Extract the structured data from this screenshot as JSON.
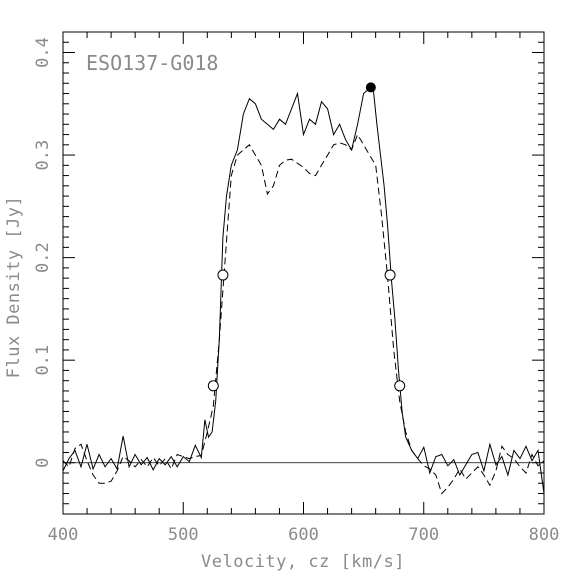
{
  "chart_data": {
    "type": "line",
    "title": "",
    "annotation": "ESO137-G018",
    "xlabel": "Velocity, cz [km/s]",
    "ylabel": "Flux Density [Jy]",
    "xlim": [
      400,
      800
    ],
    "ylim": [
      -0.05,
      0.42
    ],
    "x_ticks": [
      400,
      500,
      600,
      700,
      800
    ],
    "y_ticks": [
      0,
      0.1,
      0.2,
      0.3,
      0.4
    ],
    "x_tick_labels": [
      "400",
      "500",
      "600",
      "700",
      "800"
    ],
    "y_tick_labels": [
      "0",
      "0.1",
      "0.2",
      "0.3",
      "0.4"
    ],
    "grid": false,
    "series": [
      {
        "style": "solid",
        "x": [
          400,
          405,
          410,
          415,
          420,
          425,
          430,
          435,
          440,
          445,
          450,
          455,
          460,
          465,
          470,
          475,
          480,
          485,
          490,
          495,
          500,
          505,
          510,
          515,
          518,
          521,
          524,
          527,
          530,
          533,
          536,
          540,
          545,
          550,
          555,
          560,
          565,
          570,
          575,
          580,
          585,
          590,
          595,
          600,
          605,
          610,
          615,
          620,
          625,
          630,
          635,
          640,
          645,
          650,
          655,
          658,
          661,
          664,
          667,
          670,
          673,
          676,
          679,
          682,
          685,
          690,
          695,
          700,
          705,
          710,
          715,
          720,
          725,
          730,
          735,
          740,
          745,
          750,
          755,
          760,
          765,
          770,
          775,
          780,
          785,
          790,
          795,
          800
        ],
        "y": [
          -0.008,
          0.004,
          0.012,
          -0.004,
          0.018,
          -0.006,
          0.008,
          -0.004,
          0.004,
          -0.006,
          0.026,
          -0.004,
          0.008,
          -0.002,
          0.005,
          -0.007,
          0.004,
          -0.002,
          0.006,
          -0.004,
          0.006,
          0.001,
          0.017,
          0.005,
          0.042,
          0.025,
          0.03,
          0.06,
          0.12,
          0.22,
          0.26,
          0.29,
          0.305,
          0.34,
          0.355,
          0.35,
          0.335,
          0.33,
          0.325,
          0.335,
          0.33,
          0.345,
          0.36,
          0.32,
          0.335,
          0.33,
          0.352,
          0.345,
          0.32,
          0.33,
          0.315,
          0.305,
          0.33,
          0.36,
          0.365,
          0.365,
          0.33,
          0.3,
          0.27,
          0.23,
          0.18,
          0.14,
          0.09,
          0.05,
          0.025,
          0.012,
          0.004,
          0.015,
          -0.01,
          0.006,
          0.008,
          -0.003,
          0.003,
          -0.012,
          -0.002,
          0.008,
          0.01,
          -0.008,
          0.018,
          -0.002,
          0.006,
          -0.012,
          0.012,
          0.004,
          0.016,
          0.002,
          0.012,
          -0.03
        ]
      },
      {
        "style": "dashed",
        "x": [
          400,
          405,
          410,
          415,
          420,
          425,
          430,
          435,
          440,
          445,
          450,
          455,
          460,
          465,
          470,
          475,
          480,
          485,
          490,
          495,
          500,
          505,
          510,
          515,
          520,
          525,
          530,
          535,
          540,
          545,
          550,
          555,
          560,
          565,
          570,
          575,
          580,
          585,
          590,
          595,
          600,
          605,
          610,
          615,
          620,
          625,
          630,
          635,
          640,
          645,
          650,
          655,
          660,
          665,
          670,
          675,
          680,
          685,
          690,
          695,
          700,
          705,
          710,
          715,
          720,
          725,
          730,
          735,
          740,
          745,
          750,
          755,
          760,
          765,
          770,
          775,
          780,
          785,
          790,
          795,
          800
        ],
        "y": [
          0.002,
          -0.004,
          0.014,
          0.018,
          0.002,
          -0.012,
          -0.02,
          -0.02,
          -0.018,
          -0.008,
          0.006,
          0.002,
          -0.004,
          0.003,
          -0.004,
          0.005,
          -0.003,
          0.004,
          -0.006,
          0.008,
          0.006,
          0.004,
          0.006,
          0.007,
          0.03,
          0.055,
          0.12,
          0.2,
          0.28,
          0.3,
          0.305,
          0.31,
          0.3,
          0.29,
          0.262,
          0.27,
          0.29,
          0.295,
          0.296,
          0.292,
          0.288,
          0.282,
          0.28,
          0.29,
          0.3,
          0.31,
          0.312,
          0.31,
          0.305,
          0.32,
          0.31,
          0.3,
          0.29,
          0.24,
          0.18,
          0.11,
          0.06,
          0.03,
          0.012,
          0.004,
          -0.003,
          -0.006,
          -0.012,
          -0.03,
          -0.024,
          -0.016,
          -0.006,
          -0.016,
          -0.01,
          -0.004,
          -0.012,
          -0.022,
          -0.008,
          0.016,
          0.008,
          0.004,
          -0.004,
          -0.01,
          0.008,
          -0.003,
          0.002
        ]
      }
    ],
    "markers": [
      {
        "style": "filled",
        "x": 656,
        "y": 0.366
      },
      {
        "style": "open",
        "x": 525,
        "y": 0.075
      },
      {
        "style": "open",
        "x": 533,
        "y": 0.183
      },
      {
        "style": "open",
        "x": 672,
        "y": 0.183
      },
      {
        "style": "open",
        "x": 680,
        "y": 0.075
      }
    ],
    "reference_line": {
      "y": 0
    }
  }
}
